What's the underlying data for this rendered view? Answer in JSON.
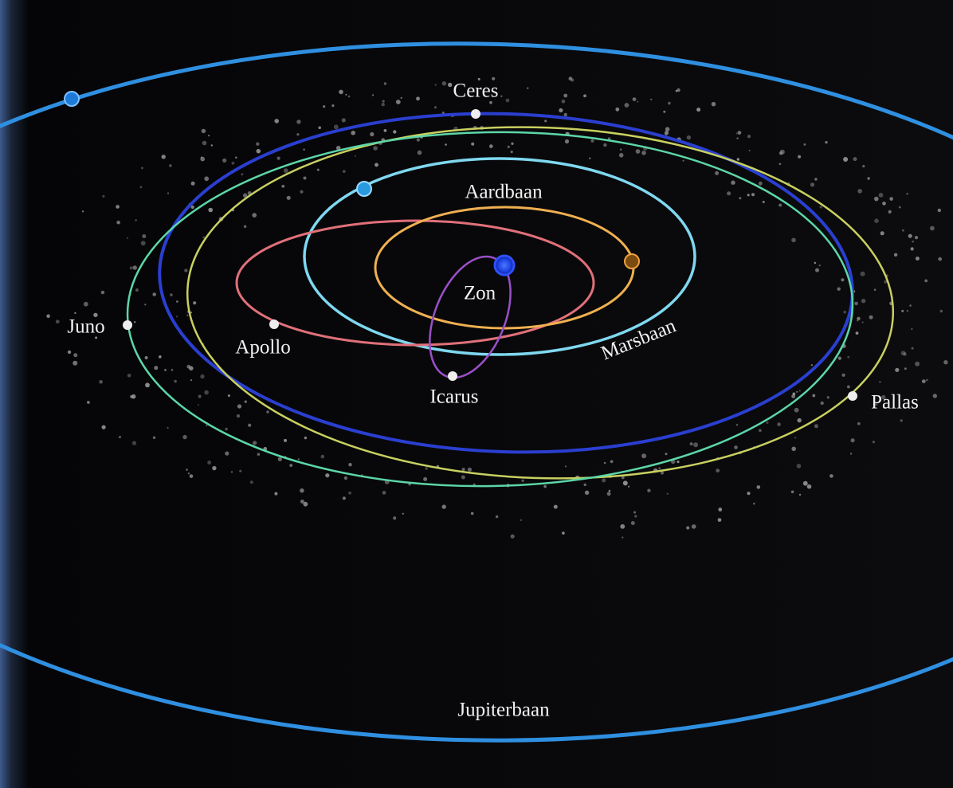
{
  "labels": {
    "ceres": "Ceres",
    "aardbaan": "Aardbaan",
    "zon": "Zon",
    "marsbaan": "Marsbaan",
    "juno": "Juno",
    "apollo": "Apollo",
    "icarus": "Icarus",
    "pallas": "Pallas",
    "jupiterbaan": "Jupiterbaan"
  }
}
